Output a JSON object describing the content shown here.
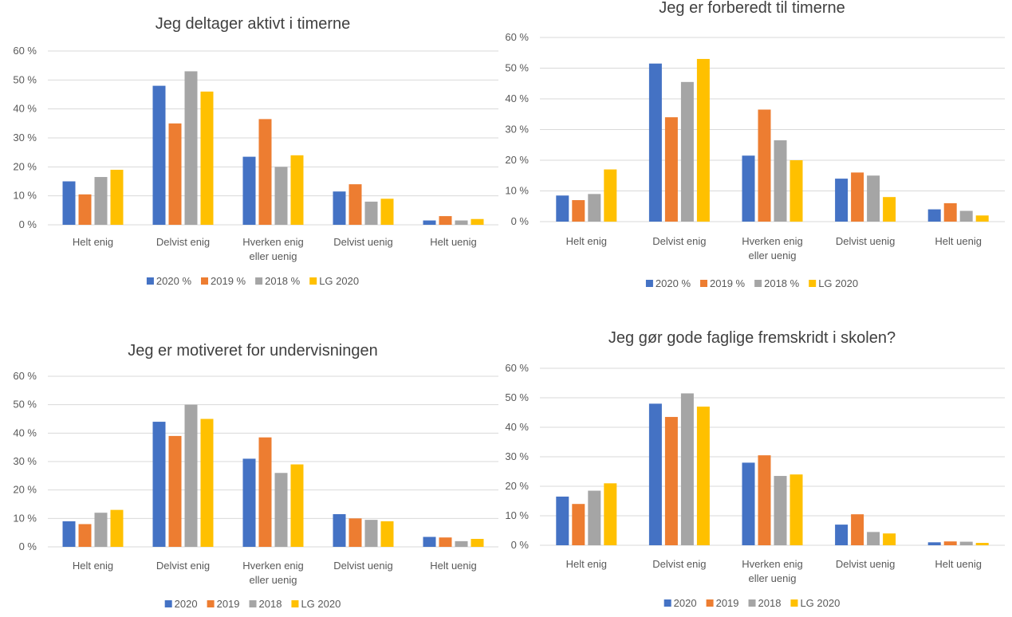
{
  "colors": {
    "series": [
      "#4472C4",
      "#ED7D31",
      "#A5A5A5",
      "#FFC000"
    ],
    "grid": "#D9D9D9",
    "text": "#595959",
    "title": "#404040"
  },
  "chart_data": [
    {
      "type": "bar",
      "title": "Jeg deltager aktivt i timerne",
      "categories": [
        "Helt enig",
        "Delvist enig",
        "Hverken enig eller uenig",
        "Delvist uenig",
        "Helt uenig"
      ],
      "category_lines": [
        [
          "Helt enig"
        ],
        [
          "Delvist enig"
        ],
        [
          "Hverken enig",
          "eller uenig"
        ],
        [
          "Delvist uenig"
        ],
        [
          "Helt uenig"
        ]
      ],
      "yticks": [
        "0 %",
        "10 %",
        "20 %",
        "30 %",
        "40 %",
        "50 %",
        "60 %"
      ],
      "ylim": [
        0,
        60
      ],
      "grid": true,
      "legend": "bottom",
      "series": [
        {
          "name": "2020 %",
          "values": [
            15,
            48,
            23.5,
            11.5,
            1.5
          ]
        },
        {
          "name": "2019 %",
          "values": [
            10.5,
            35,
            36.5,
            14,
            3
          ]
        },
        {
          "name": "2018 %",
          "values": [
            16.5,
            53,
            20,
            8,
            1.5
          ]
        },
        {
          "name": "LG 2020",
          "values": [
            19,
            46,
            24,
            9,
            2
          ]
        }
      ]
    },
    {
      "type": "bar",
      "title": "Jeg er forberedt til timerne",
      "categories": [
        "Helt enig",
        "Delvist enig",
        "Hverken enig eller uenig",
        "Delvist uenig",
        "Helt uenig"
      ],
      "category_lines": [
        [
          "Helt enig"
        ],
        [
          "Delvist enig"
        ],
        [
          "Hverken enig",
          "eller uenig"
        ],
        [
          "Delvist uenig"
        ],
        [
          "Helt uenig"
        ]
      ],
      "yticks": [
        "0 %",
        "10 %",
        "20 %",
        "30 %",
        "40 %",
        "50 %",
        "60 %"
      ],
      "ylim": [
        0,
        60
      ],
      "grid": true,
      "legend": "bottom",
      "series": [
        {
          "name": "2020 %",
          "values": [
            8.5,
            51.5,
            21.5,
            14,
            4
          ]
        },
        {
          "name": "2019 %",
          "values": [
            7,
            34,
            36.5,
            16,
            6
          ]
        },
        {
          "name": "2018 %",
          "values": [
            9,
            45.5,
            26.5,
            15,
            3.5
          ]
        },
        {
          "name": "LG 2020",
          "values": [
            17,
            53,
            20,
            8,
            2
          ]
        }
      ]
    },
    {
      "type": "bar",
      "title": "Jeg er motiveret for undervisningen",
      "categories": [
        "Helt enig",
        "Delvist enig",
        "Hverken enig eller uenig",
        "Delvist uenig",
        "Helt uenig"
      ],
      "category_lines": [
        [
          "Helt enig"
        ],
        [
          "Delvist enig"
        ],
        [
          "Hverken enig",
          "eller uenig"
        ],
        [
          "Delvist uenig"
        ],
        [
          "Helt uenig"
        ]
      ],
      "yticks": [
        "0 %",
        "10 %",
        "20 %",
        "30 %",
        "40 %",
        "50 %",
        "60 %"
      ],
      "ylim": [
        0,
        60
      ],
      "grid": true,
      "legend": "bottom",
      "series": [
        {
          "name": "2020",
          "values": [
            9,
            44,
            31,
            11.5,
            3.5
          ]
        },
        {
          "name": "2019",
          "values": [
            8,
            39,
            38.5,
            10,
            3.3
          ]
        },
        {
          "name": "2018",
          "values": [
            12,
            50,
            26,
            9.5,
            2
          ]
        },
        {
          "name": "LG 2020",
          "values": [
            13,
            45,
            29,
            9,
            2.8
          ]
        }
      ]
    },
    {
      "type": "bar",
      "title": "Jeg gør gode faglige fremskridt i skolen?",
      "categories": [
        "Helt enig",
        "Delvist enig",
        "Hverken enig eller uenig",
        "Delvist uenig",
        "Helt uenig"
      ],
      "category_lines": [
        [
          "Helt enig"
        ],
        [
          "Delvist enig"
        ],
        [
          "Hverken enig",
          "eller uenig"
        ],
        [
          "Delvist uenig"
        ],
        [
          "Helt uenig"
        ]
      ],
      "yticks": [
        "0 %",
        "10 %",
        "20 %",
        "30 %",
        "40 %",
        "50 %",
        "60 %"
      ],
      "ylim": [
        0,
        60
      ],
      "grid": true,
      "legend": "bottom",
      "series": [
        {
          "name": "2020",
          "values": [
            16.5,
            48,
            28,
            7,
            1
          ]
        },
        {
          "name": "2019",
          "values": [
            14,
            43.5,
            30.5,
            10.5,
            1.3
          ]
        },
        {
          "name": "2018",
          "values": [
            18.5,
            51.5,
            23.5,
            4.5,
            1.2
          ]
        },
        {
          "name": "LG 2020",
          "values": [
            21,
            47,
            24,
            4,
            0.8
          ]
        }
      ]
    }
  ]
}
